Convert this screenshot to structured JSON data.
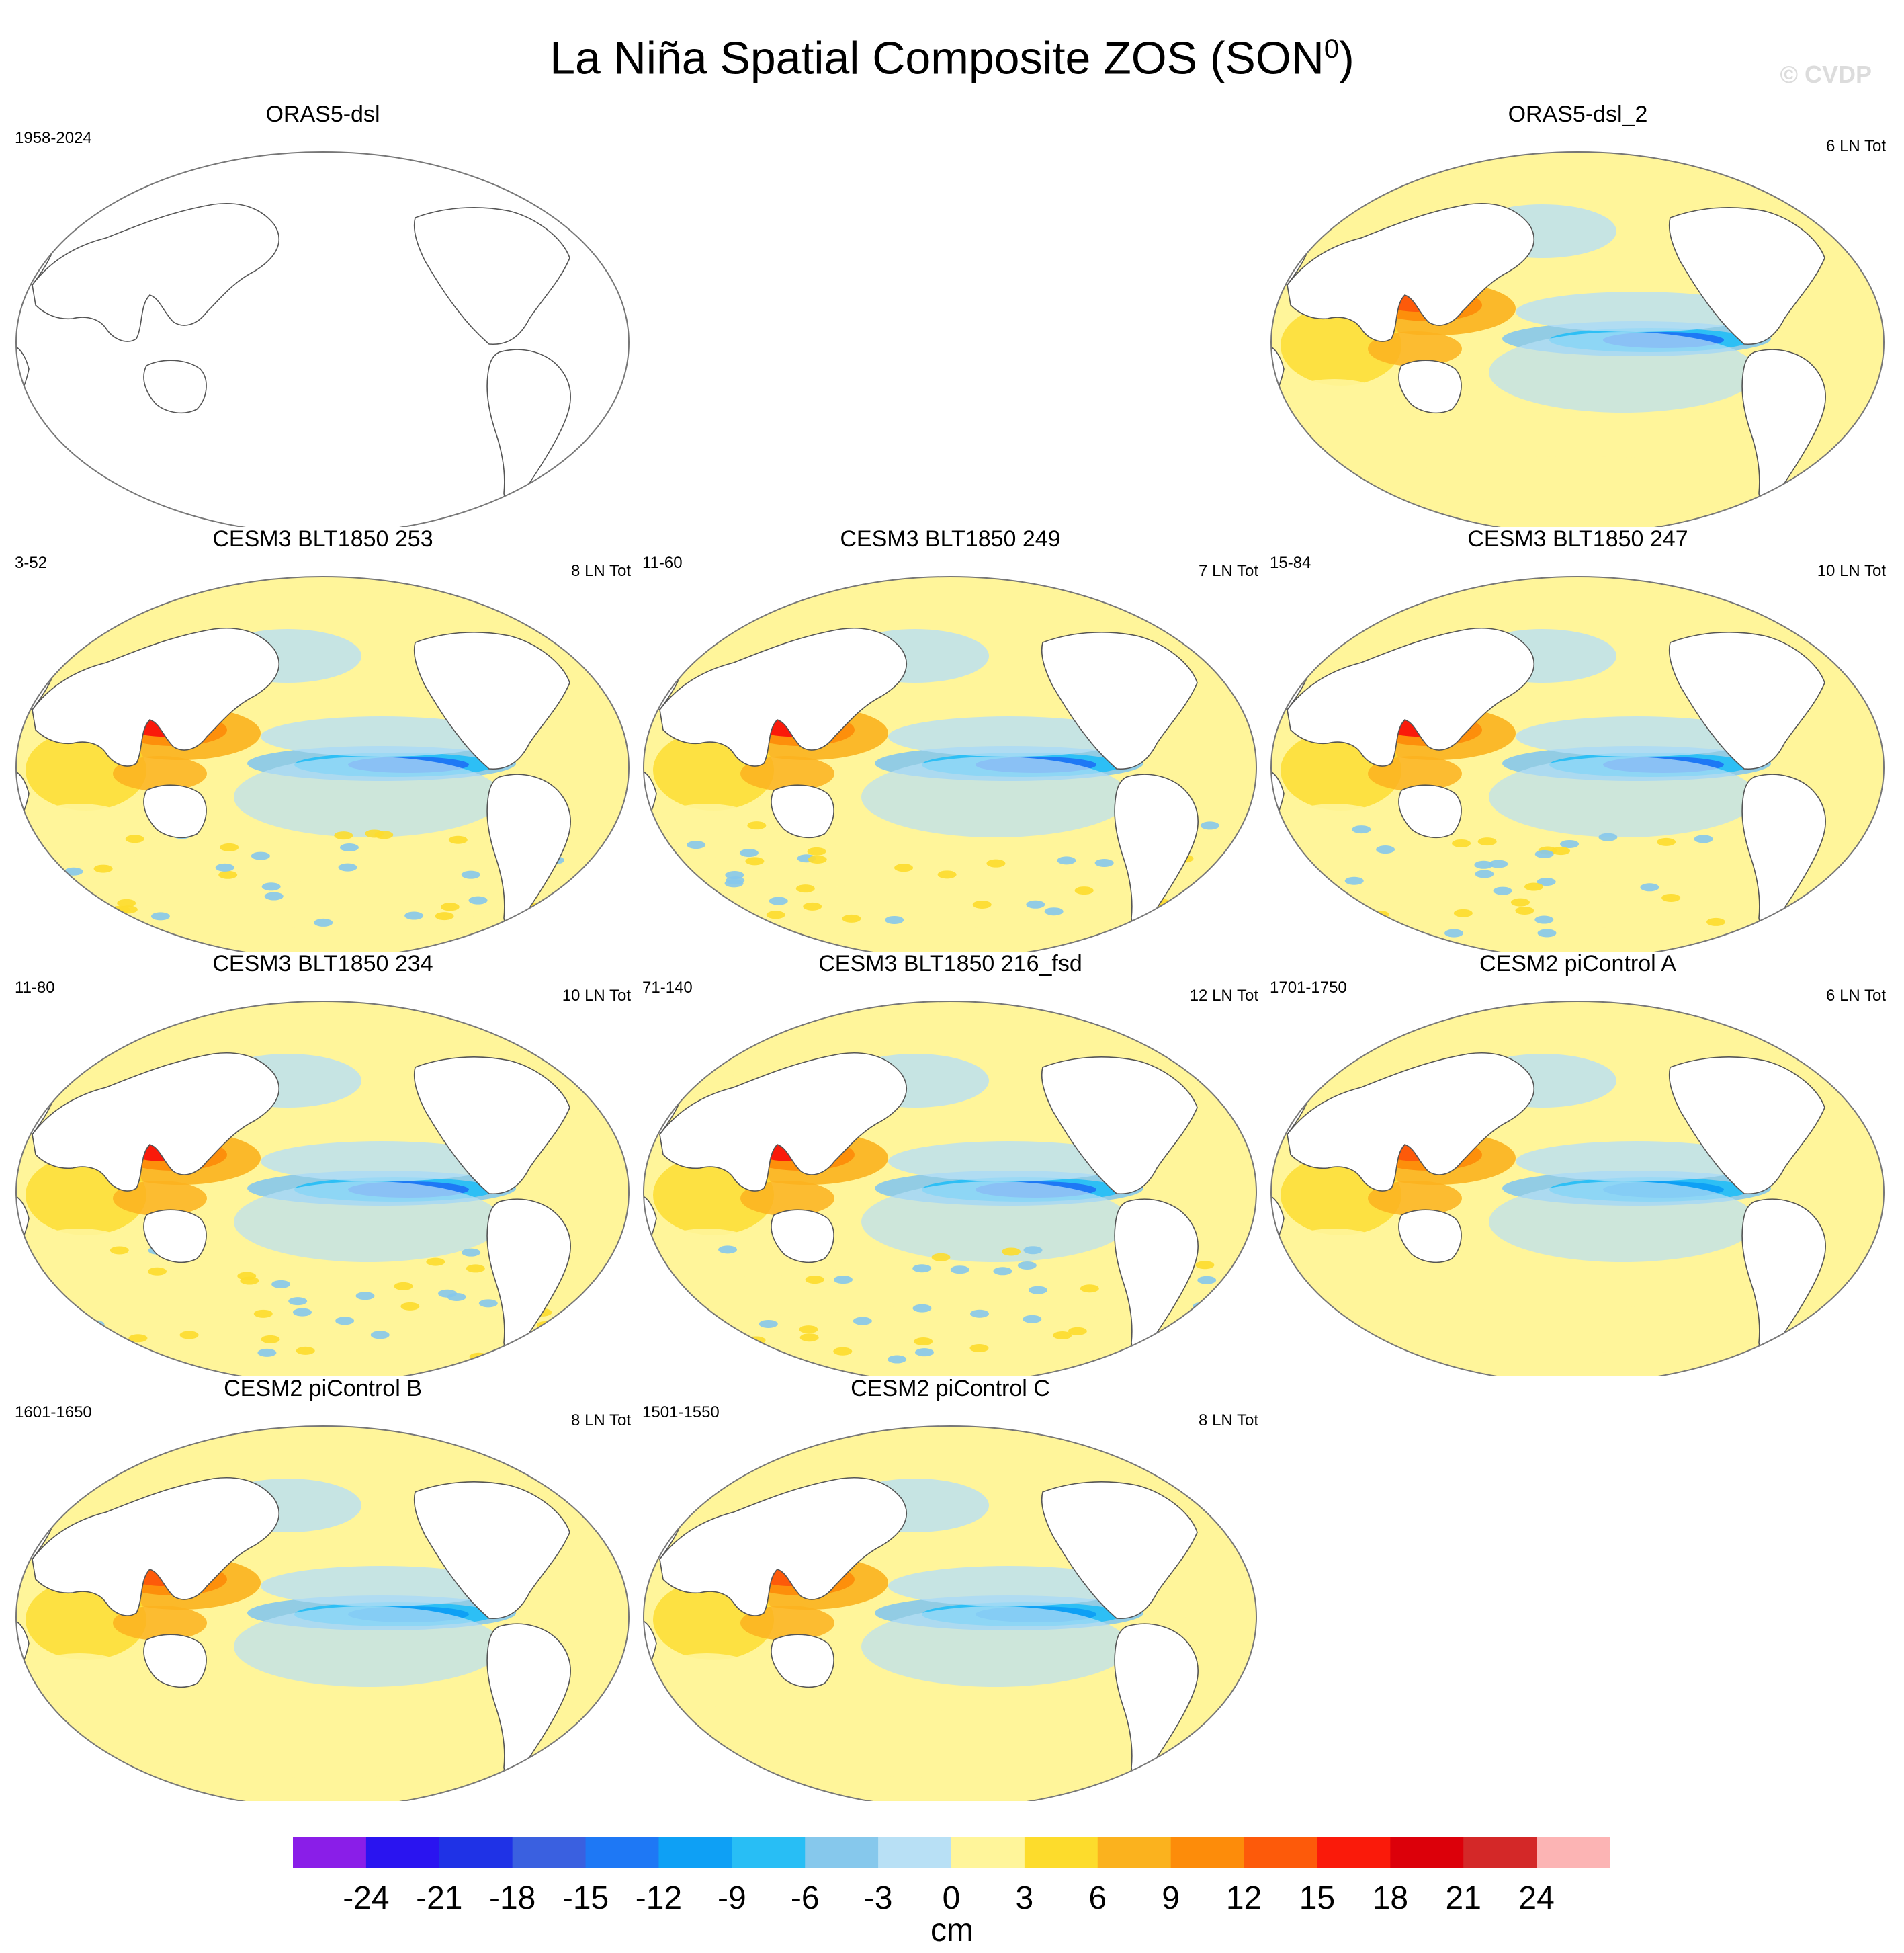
{
  "figure": {
    "title": "La Niña Spatial Composite ZOS (SON",
    "title_superscript": "0",
    "title_suffix": ")",
    "watermark": "© CVDP"
  },
  "panels": [
    {
      "title": "ORAS5-dsl",
      "years": "1958-2024",
      "count": "",
      "blank": true,
      "row": 0,
      "col": 0,
      "style": 0
    },
    {
      "title": "ORAS5-dsl_2",
      "years": "",
      "count": "6 LN Tot",
      "blank": false,
      "row": 0,
      "col": 2,
      "style": 0
    },
    {
      "title": "CESM3 BLT1850 253",
      "years": "3-52",
      "count": "8 LN Tot",
      "blank": false,
      "row": 1,
      "col": 0,
      "style": 1
    },
    {
      "title": "CESM3 BLT1850 249",
      "years": "11-60",
      "count": "7 LN Tot",
      "blank": false,
      "row": 1,
      "col": 1,
      "style": 1
    },
    {
      "title": "CESM3 BLT1850 247",
      "years": "15-84",
      "count": "10 LN Tot",
      "blank": false,
      "row": 1,
      "col": 2,
      "style": 1
    },
    {
      "title": "CESM3 BLT1850 234",
      "years": "11-80",
      "count": "10 LN Tot",
      "blank": false,
      "row": 2,
      "col": 0,
      "style": 1
    },
    {
      "title": "CESM3 BLT1850 216_fsd",
      "years": "71-140",
      "count": "12 LN Tot",
      "blank": false,
      "row": 2,
      "col": 1,
      "style": 1
    },
    {
      "title": "CESM2 piControl A",
      "years": "1701-1750",
      "count": "6 LN Tot",
      "blank": false,
      "row": 2,
      "col": 2,
      "style": 2
    },
    {
      "title": "CESM2 piControl B",
      "years": "1601-1650",
      "count": "8 LN Tot",
      "blank": false,
      "row": 3,
      "col": 0,
      "style": 2
    },
    {
      "title": "CESM2 piControl C",
      "years": "1501-1550",
      "count": "8 LN Tot",
      "blank": false,
      "row": 3,
      "col": 1,
      "style": 2
    }
  ],
  "colorbar": {
    "units": "cm",
    "labels": [
      "-24",
      "-21",
      "-18",
      "-15",
      "-12",
      "-9",
      "-6",
      "-3",
      "0",
      "3",
      "6",
      "9",
      "12",
      "15",
      "18",
      "21",
      "24"
    ],
    "colors": [
      "#8a1ee8",
      "#2a14f0",
      "#1f32e6",
      "#3a60e0",
      "#1e78f5",
      "#0ea0f5",
      "#28bef5",
      "#86c8ec",
      "#b8e0f5",
      "#fff59a",
      "#fddc2c",
      "#fbb21e",
      "#fd8c0a",
      "#fd5a0a",
      "#fa1a0a",
      "#dc000a",
      "#d42828",
      "#fcb4b4"
    ]
  }
}
